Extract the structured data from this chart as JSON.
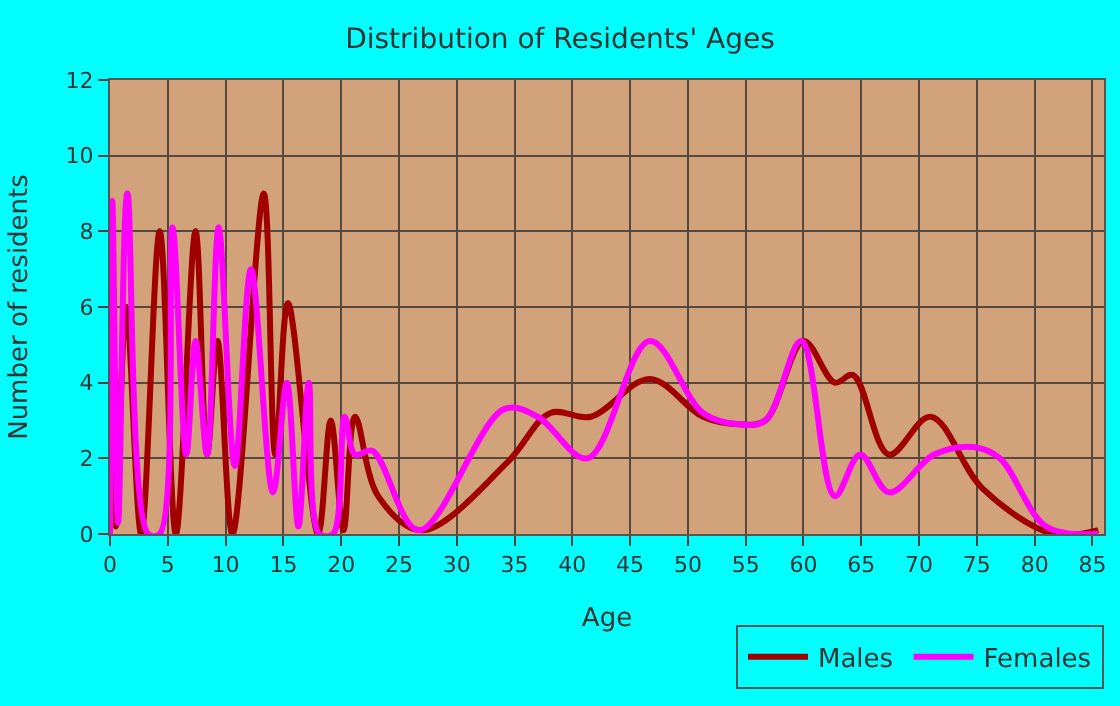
{
  "chart_data": {
    "type": "line",
    "title": "Distribution of Residents' Ages",
    "xlabel": "Age",
    "ylabel": "Number of residents",
    "xlim": [
      0,
      86
    ],
    "xticks": [
      0,
      5,
      10,
      15,
      20,
      25,
      30,
      35,
      40,
      45,
      50,
      55,
      60,
      65,
      70,
      75,
      80,
      85
    ],
    "ylim": [
      0,
      12
    ],
    "yticks": [
      0,
      2,
      4,
      6,
      8,
      10,
      12
    ],
    "grid": true,
    "legend": "bottom right",
    "marker": "none",
    "line_style": "solid",
    "series": [
      {
        "name": "Males",
        "color": "#a00000",
        "x": [
          0,
          0.2,
          0.5,
          1.4,
          2.7,
          4.3,
          5.7,
          7.4,
          8.4,
          9.3,
          10.6,
          13.3,
          14.3,
          15.4,
          18,
          19.1,
          20.2,
          21.2,
          23.2,
          27,
          34.4,
          38.1,
          41.6,
          46.7,
          51.3,
          54.4,
          56.7,
          60,
          62.7,
          64.3,
          67.4,
          71,
          75.5,
          81.6,
          85.5
        ],
        "values": [
          0,
          5.8,
          0.2,
          6,
          0,
          8,
          0,
          8,
          2.1,
          5.1,
          0,
          9,
          2.1,
          6.1,
          0,
          3,
          0.1,
          3.1,
          1,
          0.1,
          1.9,
          3.2,
          3.1,
          4.1,
          3.1,
          2.9,
          3,
          5.1,
          4,
          4.2,
          2.1,
          3.1,
          1.2,
          0,
          0.1
        ]
      },
      {
        "name": "Females",
        "color": "#ff00ff",
        "x": [
          0,
          0.2,
          0.7,
          1.5,
          3.3,
          4.3,
          5.4,
          6.6,
          7.4,
          8.4,
          9.4,
          10.8,
          12.2,
          14.1,
          15.3,
          16.3,
          17.2,
          18.1,
          19.3,
          20.3,
          21.2,
          22.7,
          26.7,
          34.1,
          37,
          41.3,
          46.7,
          51.3,
          54.4,
          56.7,
          59.8,
          62.7,
          64.9,
          67.4,
          71.3,
          74.7,
          77,
          81,
          85.5
        ],
        "values": [
          0,
          8.8,
          0.3,
          9,
          0,
          0,
          8.1,
          2.1,
          5.1,
          2.1,
          8.1,
          1.8,
          7,
          1.1,
          4,
          0.2,
          4,
          0,
          0,
          3.1,
          2.1,
          2.2,
          0.1,
          3.3,
          3.1,
          2,
          5.1,
          3.2,
          2.9,
          3,
          5.1,
          1,
          2.1,
          1.1,
          2.1,
          2.3,
          2,
          0.2,
          0
        ]
      }
    ]
  }
}
